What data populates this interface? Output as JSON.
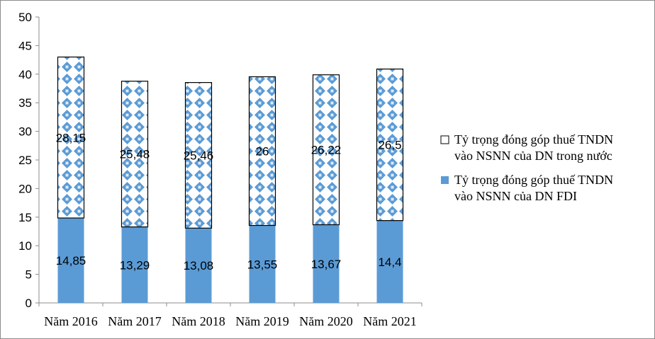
{
  "chart_data": {
    "type": "bar",
    "stacked": true,
    "categories": [
      "Năm 2016",
      "Năm 2017",
      "Năm 2018",
      "Năm 2019",
      "Năm 2020",
      "Năm 2021"
    ],
    "series": [
      {
        "name": "Tỷ trọng đóng góp thuế TNDN vào NSNN của DN FDI",
        "legend_lines": [
          "Tỷ trọng đóng góp thuế TNDN",
          "vào NSNN của DN FDI"
        ],
        "values": [
          14.85,
          13.29,
          13.08,
          13.55,
          13.67,
          14.4
        ],
        "labels": [
          "14,85",
          "13,29",
          "13,08",
          "13,55",
          "13,67",
          "14,4"
        ],
        "color": "#5b9bd5"
      },
      {
        "name": "Tỷ trọng đóng góp thuế TNDN vào NSNN của DN trong nước",
        "legend_lines": [
          "Tỷ trọng đóng góp thuế TNDN",
          "vào NSNN của DN trong nước"
        ],
        "values": [
          28.15,
          25.48,
          25.46,
          26,
          26.22,
          26.5
        ],
        "labels": [
          "28,15",
          "25,48",
          "25,46",
          "26",
          "26,22",
          "26,5"
        ],
        "color": "#5b9bd5",
        "pattern": "diamond-lattice"
      }
    ],
    "y_ticks": [
      0,
      5,
      10,
      15,
      20,
      25,
      30,
      35,
      40,
      45,
      50
    ],
    "ylim": [
      0,
      50
    ],
    "grid": false,
    "legend_position": "right"
  }
}
